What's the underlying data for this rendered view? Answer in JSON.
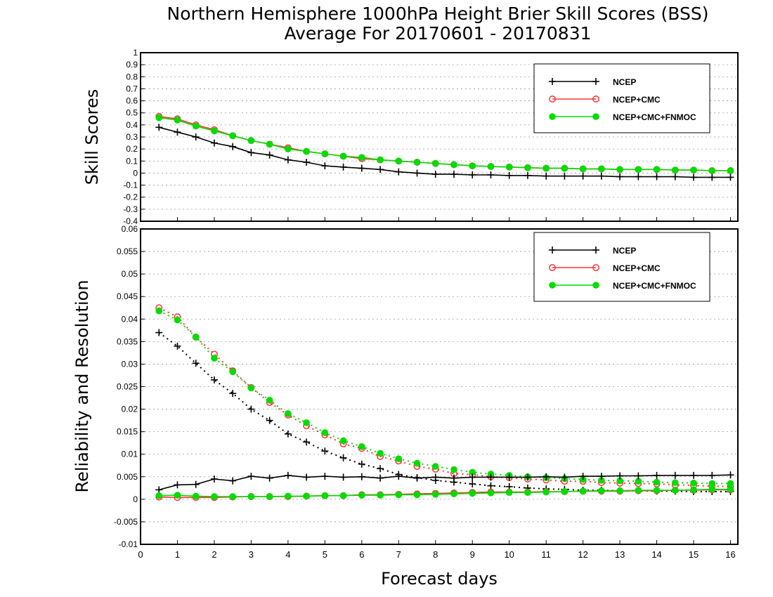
{
  "title": {
    "line1": "Northern Hemisphere 1000hPa Height Brier Skill Scores (BSS)",
    "line2": "Average For 20170601 - 20170831"
  },
  "colors": {
    "NCEP": "#000000",
    "NCEP+CMC": "#ff3333",
    "NCEP+CMC+FNMOC": "#00dd00"
  },
  "chart_data": [
    {
      "type": "line",
      "ylabel": "Skill Scores",
      "xlabel": "Forecast days",
      "xlim": [
        0,
        16.2
      ],
      "ylim": [
        -0.4,
        1
      ],
      "yticks": [
        "-0.4",
        "-0.3",
        "-0.2",
        "-0.1",
        "0",
        "0.1",
        "0.2",
        "0.3",
        "0.4",
        "0.5",
        "0.6",
        "0.7",
        "0.8",
        "0.9",
        "1"
      ],
      "grid": true,
      "legend": [
        "NCEP",
        "NCEP+CMC",
        "NCEP+CMC+FNMOC"
      ],
      "legend_position": "top-right",
      "x": [
        0.5,
        1,
        1.5,
        2,
        2.5,
        3,
        3.5,
        4,
        4.5,
        5,
        5.5,
        6,
        6.5,
        7,
        7.5,
        8,
        8.5,
        9,
        9.5,
        10,
        10.5,
        11,
        11.5,
        12,
        12.5,
        13,
        13.5,
        14,
        14.5,
        15,
        15.5,
        16
      ],
      "series": [
        {
          "name": "NCEP",
          "marker": "plus",
          "line": "solid",
          "values": [
            0.38,
            0.34,
            0.3,
            0.25,
            0.22,
            0.17,
            0.15,
            0.11,
            0.09,
            0.06,
            0.05,
            0.04,
            0.03,
            0.01,
            0.0,
            -0.01,
            -0.01,
            -0.015,
            -0.015,
            -0.02,
            -0.02,
            -0.025,
            -0.025,
            -0.025,
            -0.025,
            -0.03,
            -0.03,
            -0.03,
            -0.03,
            -0.035,
            -0.035,
            -0.035
          ]
        },
        {
          "name": "NCEP+CMC",
          "marker": "open-circle",
          "line": "solid",
          "values": [
            0.47,
            0.45,
            0.4,
            0.36,
            0.31,
            0.27,
            0.24,
            0.21,
            0.18,
            0.16,
            0.14,
            0.12,
            0.11,
            0.1,
            0.09,
            0.08,
            0.07,
            0.06,
            0.055,
            0.05,
            0.045,
            0.04,
            0.04,
            0.035,
            0.035,
            0.03,
            0.03,
            0.03,
            0.025,
            0.025,
            0.02,
            0.02
          ]
        },
        {
          "name": "NCEP+CMC+FNMOC",
          "marker": "filled-circle",
          "line": "solid",
          "values": [
            0.46,
            0.44,
            0.39,
            0.35,
            0.31,
            0.27,
            0.24,
            0.2,
            0.18,
            0.16,
            0.14,
            0.13,
            0.11,
            0.1,
            0.09,
            0.08,
            0.07,
            0.06,
            0.055,
            0.05,
            0.045,
            0.04,
            0.04,
            0.035,
            0.035,
            0.03,
            0.03,
            0.03,
            0.025,
            0.025,
            0.02,
            0.02
          ]
        }
      ]
    },
    {
      "type": "line",
      "ylabel": "Reliability and Resolution",
      "xlabel": "Forecast days",
      "xlim": [
        0,
        16.2
      ],
      "ylim": [
        -0.01,
        0.06
      ],
      "yticks": [
        "-0.01",
        "-0.005",
        "0",
        "0.005",
        "0.01",
        "0.015",
        "0.02",
        "0.025",
        "0.03",
        "0.035",
        "0.04",
        "0.045",
        "0.05",
        "0.055",
        "0.06"
      ],
      "xticks": [
        "0",
        "1",
        "2",
        "3",
        "4",
        "5",
        "6",
        "7",
        "8",
        "9",
        "10",
        "11",
        "12",
        "13",
        "14",
        "15",
        "16"
      ],
      "grid": true,
      "legend": [
        "NCEP",
        "NCEP+CMC",
        "NCEP+CMC+FNMOC"
      ],
      "legend_position": "top-right",
      "x": [
        0.5,
        1,
        1.5,
        2,
        2.5,
        3,
        3.5,
        4,
        4.5,
        5,
        5.5,
        6,
        6.5,
        7,
        7.5,
        8,
        8.5,
        9,
        9.5,
        10,
        10.5,
        11,
        11.5,
        12,
        12.5,
        13,
        13.5,
        14,
        14.5,
        15,
        15.5,
        16
      ],
      "series": [
        {
          "name": "NCEP",
          "kind": "resolution",
          "marker": "plus",
          "line": "dotted",
          "values": [
            0.037,
            0.034,
            0.0302,
            0.0265,
            0.0235,
            0.02,
            0.0175,
            0.0145,
            0.0127,
            0.0107,
            0.0092,
            0.0078,
            0.0068,
            0.0055,
            0.0048,
            0.0042,
            0.0038,
            0.0034,
            0.003,
            0.0028,
            0.0025,
            0.0023,
            0.0022,
            0.002,
            0.002,
            0.0019,
            0.0019,
            0.0018,
            0.0018,
            0.0017,
            0.0017,
            0.0017
          ]
        },
        {
          "name": "NCEP+CMC",
          "kind": "resolution",
          "marker": "open-circle",
          "line": "dotted",
          "values": [
            0.0425,
            0.0405,
            0.036,
            0.0322,
            0.0285,
            0.0248,
            0.0215,
            0.0187,
            0.0163,
            0.0143,
            0.0123,
            0.0113,
            0.0095,
            0.0085,
            0.0073,
            0.0067,
            0.0057,
            0.0055,
            0.005,
            0.0048,
            0.0045,
            0.0043,
            0.004,
            0.004,
            0.0037,
            0.0036,
            0.0035,
            0.0034,
            0.0032,
            0.0031,
            0.0029,
            0.0028
          ]
        },
        {
          "name": "NCEP+CMC+FNMOC",
          "kind": "resolution",
          "marker": "filled-circle",
          "line": "dotted",
          "values": [
            0.0418,
            0.0398,
            0.036,
            0.0313,
            0.0283,
            0.0247,
            0.022,
            0.019,
            0.017,
            0.0148,
            0.013,
            0.0117,
            0.0102,
            0.009,
            0.008,
            0.0073,
            0.0066,
            0.006,
            0.0056,
            0.0053,
            0.005,
            0.0048,
            0.0046,
            0.0044,
            0.0042,
            0.0041,
            0.004,
            0.0038,
            0.0037,
            0.0036,
            0.0035,
            0.0035
          ]
        },
        {
          "name": "NCEP",
          "kind": "reliability",
          "marker": "plus",
          "line": "solid",
          "values": [
            0.0021,
            0.0032,
            0.0033,
            0.0045,
            0.0041,
            0.0051,
            0.0047,
            0.0053,
            0.0049,
            0.0051,
            0.0049,
            0.005,
            0.0047,
            0.0051,
            0.0047,
            0.0049,
            0.0047,
            0.0049,
            0.0049,
            0.0049,
            0.0049,
            0.005,
            0.0049,
            0.0051,
            0.0051,
            0.0052,
            0.0052,
            0.0053,
            0.0053,
            0.0053,
            0.0053,
            0.0054
          ]
        },
        {
          "name": "NCEP+CMC",
          "kind": "reliability",
          "marker": "open-circle",
          "line": "solid",
          "values": [
            0.0005,
            0.0004,
            0.0004,
            0.0004,
            0.0005,
            0.0006,
            0.0006,
            0.0006,
            0.0007,
            0.0008,
            0.0008,
            0.001,
            0.001,
            0.0011,
            0.0012,
            0.0013,
            0.0014,
            0.0015,
            0.0016,
            0.0016,
            0.0016,
            0.0017,
            0.0017,
            0.0018,
            0.0018,
            0.0018,
            0.0019,
            0.0019,
            0.002,
            0.002,
            0.0021,
            0.0021
          ]
        },
        {
          "name": "NCEP+CMC+FNMOC",
          "kind": "reliability",
          "marker": "filled-circle",
          "line": "solid",
          "values": [
            0.0008,
            0.0009,
            0.0007,
            0.0006,
            0.0006,
            0.0006,
            0.0006,
            0.0007,
            0.0007,
            0.0008,
            0.0008,
            0.0009,
            0.0009,
            0.001,
            0.001,
            0.0011,
            0.0012,
            0.0013,
            0.0014,
            0.0015,
            0.0015,
            0.0016,
            0.0017,
            0.0018,
            0.0019,
            0.0019,
            0.002,
            0.002,
            0.002,
            0.0021,
            0.0022,
            0.0022
          ]
        }
      ]
    }
  ]
}
